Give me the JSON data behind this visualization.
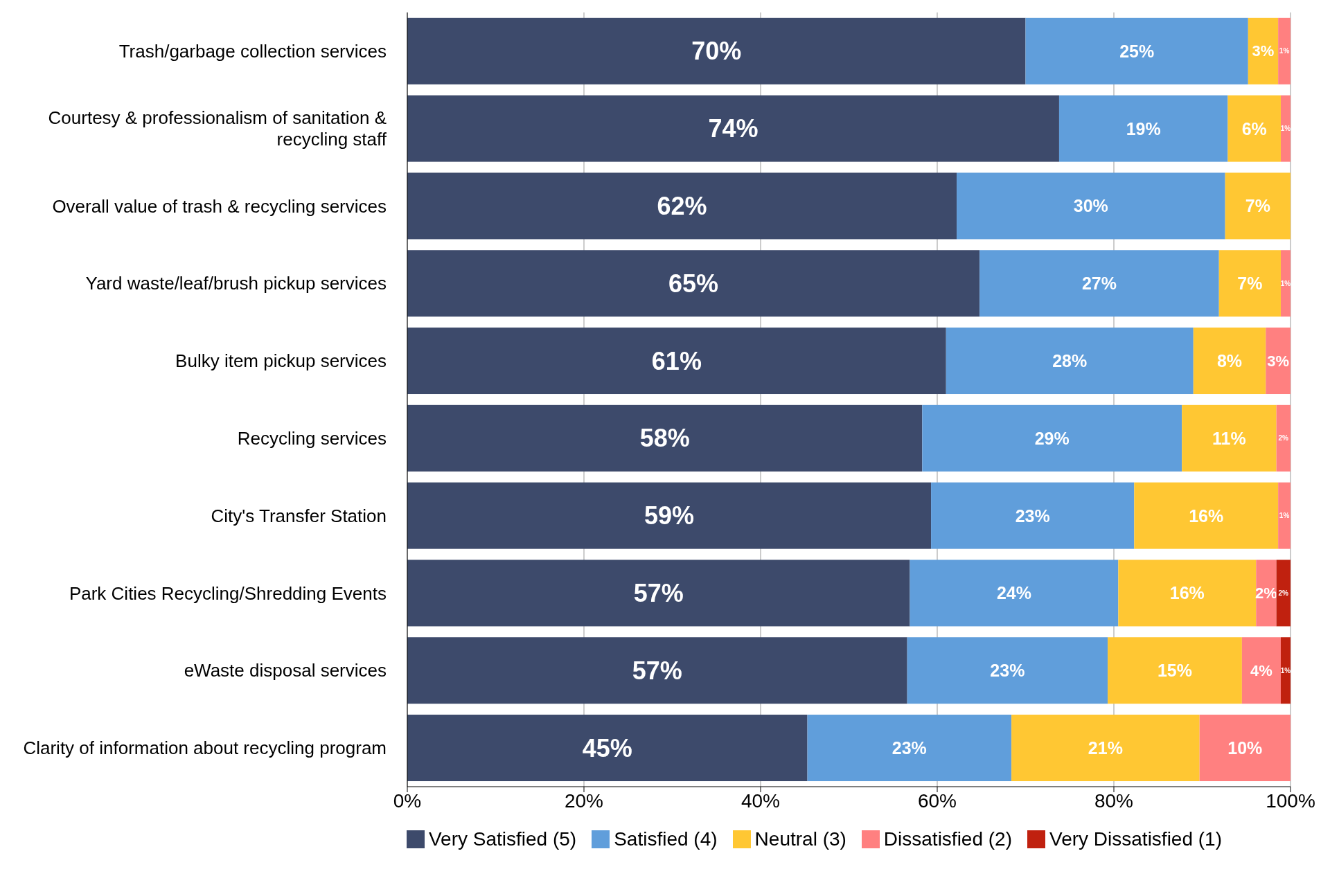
{
  "chart_data": {
    "type": "bar",
    "orientation": "horizontal",
    "stacked": true,
    "categories": [
      "Trash/garbage collection services",
      "Courtesy & professionalism of sanitation & recycling staff",
      "Overall value of trash & recycling services",
      "Yard waste/leaf/brush pickup services",
      "Bulky item pickup services",
      "Recycling services",
      "City's Transfer Station",
      "Park Cities Recycling/Shredding Events",
      "eWaste disposal services",
      "Clarity of information about recycling program"
    ],
    "series": [
      {
        "name": "Very Satisfied (5)",
        "color": "#3d4a6b",
        "values": [
          70.0,
          73.8,
          62.2,
          64.8,
          61.0,
          58.3,
          59.3,
          56.9,
          56.6,
          45.3
        ],
        "value_labels": [
          "70%",
          "74%",
          "62%",
          "65%",
          "61%",
          "58%",
          "59%",
          "57%",
          "57%",
          "45%"
        ]
      },
      {
        "name": "Satisfied (4)",
        "color": "#609edb",
        "values": [
          25.2,
          19.1,
          30.4,
          27.1,
          28.0,
          29.4,
          23.0,
          23.6,
          22.7,
          23.1
        ],
        "value_labels": [
          "25%",
          "19%",
          "30%",
          "27%",
          "28%",
          "29%",
          "23%",
          "24%",
          "23%",
          "23%"
        ]
      },
      {
        "name": "Neutral (3)",
        "color": "#ffc733",
        "values": [
          3.4,
          6.0,
          7.4,
          7.0,
          8.2,
          10.7,
          16.3,
          15.6,
          15.2,
          21.3
        ],
        "value_labels": [
          "3%",
          "6%",
          "7%",
          "7%",
          "8%",
          "11%",
          "16%",
          "16%",
          "15%",
          "21%"
        ]
      },
      {
        "name": "Dissatisfied (2)",
        "color": "#ff8080",
        "values": [
          1.4,
          1.1,
          0,
          1.1,
          2.8,
          1.6,
          1.4,
          2.3,
          4.4,
          10.3
        ],
        "value_labels": [
          "1%",
          "1%",
          null,
          "1%",
          "3%",
          "2%",
          "1%",
          "2%",
          "4%",
          "10%"
        ]
      },
      {
        "name": "Very Dissatisfied (1)",
        "color": "#c0210f",
        "values": [
          0,
          0,
          0,
          0,
          0,
          0,
          0,
          1.6,
          1.1,
          0
        ],
        "value_labels": [
          null,
          null,
          null,
          null,
          null,
          null,
          null,
          "2%",
          "1%",
          null
        ]
      }
    ],
    "xlim": [
      0,
      100
    ],
    "xticks": [
      {
        "value": 0,
        "label": "0%"
      },
      {
        "value": 20,
        "label": "20%"
      },
      {
        "value": 40,
        "label": "40%"
      },
      {
        "value": 60,
        "label": "60%"
      },
      {
        "value": 80,
        "label": "80%"
      },
      {
        "value": 100,
        "label": "100%"
      }
    ],
    "grid": "x",
    "legend": "bottom"
  }
}
